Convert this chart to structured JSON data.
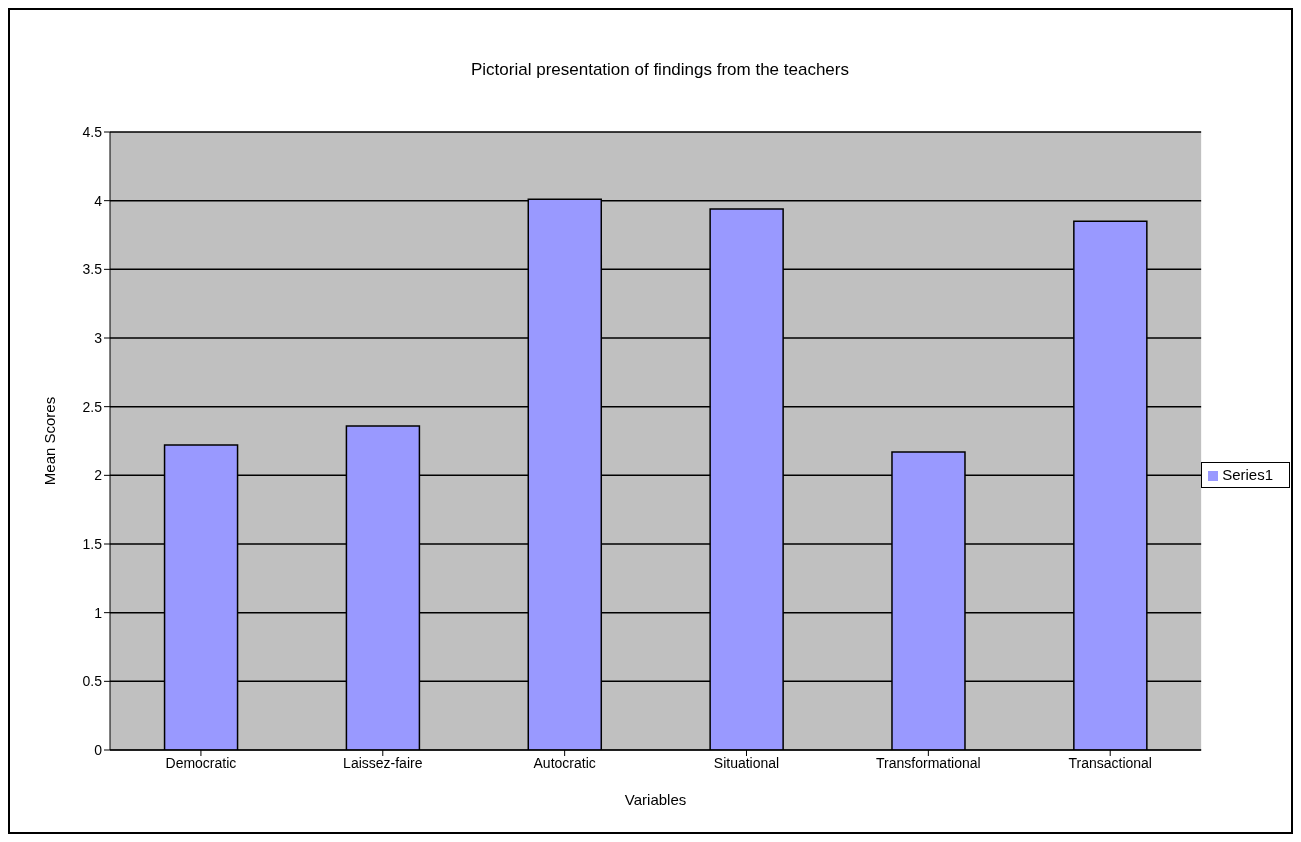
{
  "chart_data": {
    "type": "bar",
    "title": "Pictorial presentation of findings from the teachers",
    "xlabel": "Variables",
    "ylabel": "Mean Scores",
    "categories": [
      "Democratic",
      "Laissez-faire",
      "Autocratic",
      "Situational",
      "Transformational",
      "Transactional"
    ],
    "series": [
      {
        "name": "Series1",
        "color": "#9999ff",
        "values": [
          2.22,
          2.36,
          4.01,
          3.94,
          2.17,
          3.85
        ]
      }
    ],
    "ylim": [
      0,
      4.5
    ],
    "yticks": [
      0,
      0.5,
      1,
      1.5,
      2,
      2.5,
      3,
      3.5,
      4,
      4.5
    ],
    "grid": "y",
    "legend": "right"
  }
}
